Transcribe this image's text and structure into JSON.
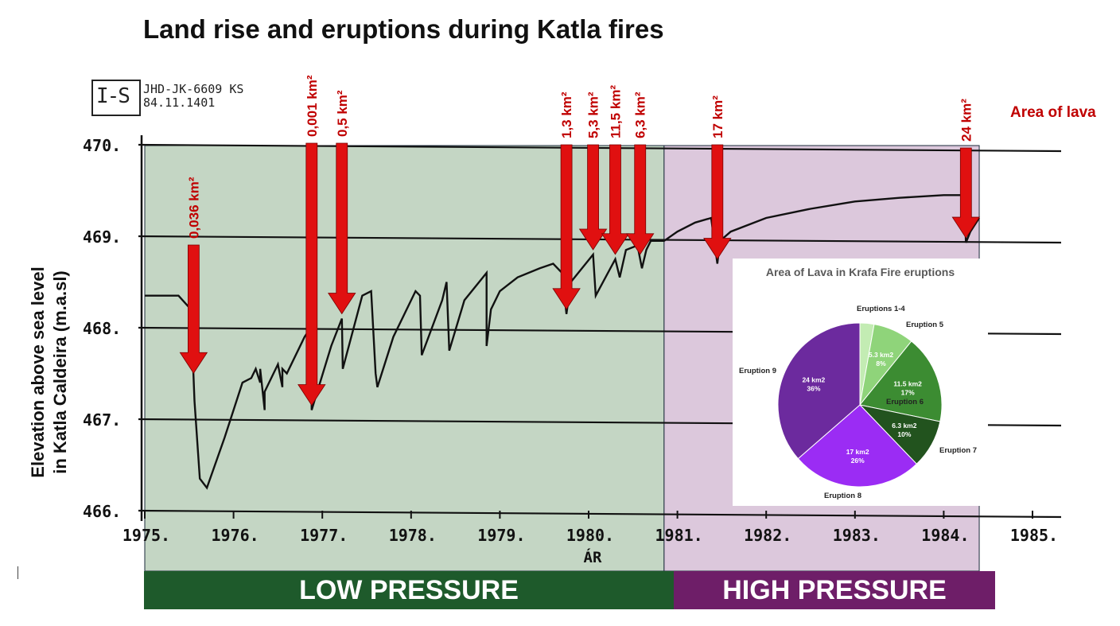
{
  "title": "Land rise and eruptions during Katla fires",
  "stamp": {
    "line1": "JHD-JK-6609 KS",
    "line2": "84.11.1401",
    "glyph": "I-S"
  },
  "y_axis_label": {
    "line1": "Elevation above sea level",
    "line2": "in Katla Caldeira (m.a.sl)"
  },
  "area_of_lava_label": "Area of lava",
  "x_axis_title": "ÁR",
  "bands": {
    "low": "LOW PRESSURE",
    "high": "HIGH PRESSURE"
  },
  "colors": {
    "low_bg": "#c4d6c4",
    "high_bg": "#dcc8dc",
    "arrow": "#e01010",
    "low_band": "#1e5a2b",
    "high_band": "#6e1e68",
    "annotation": "#c00000"
  },
  "chart_data": [
    {
      "type": "line",
      "title": "Land rise and eruptions during Katla fires",
      "xlabel": "ÁR",
      "ylabel": "Elevation above sea level in Katla Caldeira (m.a.sl)",
      "xlim": [
        1975,
        1985
      ],
      "ylim": [
        466,
        470
      ],
      "x_ticks": [
        "1975.",
        "1976.",
        "1977.",
        "1978.",
        "1979.",
        "1980.",
        "1981.",
        "1982.",
        "1983.",
        "1984.",
        "1985."
      ],
      "y_ticks": [
        "466.",
        "467.",
        "468.",
        "469.",
        "470."
      ],
      "grid": true,
      "regions": [
        {
          "label": "LOW PRESSURE",
          "x": [
            1975,
            1980.85
          ]
        },
        {
          "label": "HIGH PRESSURE",
          "x": [
            1980.85,
            1984.4
          ]
        }
      ],
      "series": [
        {
          "x": [
            1975,
            1975.38,
            1975.52,
            1975.56,
            1975.62,
            1975.7,
            1975.9,
            1976.1,
            1976.2,
            1976.25,
            1976.3,
            1976.3,
            1976.35,
            1976.35,
            1976.5,
            1976.55,
            1976.55,
            1976.6,
            1976.8,
            1976.87,
            1976.88,
            1977.1,
            1977.22,
            1977.23,
            1977.45,
            1977.55,
            1977.6,
            1977.62,
            1977.8,
            1978.05,
            1978.1,
            1978.12,
            1978.35,
            1978.4,
            1978.43,
            1978.6,
            1978.85,
            1978.85,
            1978.9,
            1979.0,
            1979.2,
            1979.45,
            1979.6,
            1979.7,
            1979.75,
            1979.8,
            1980.05,
            1980.08,
            1980.3,
            1980.35,
            1980.42,
            1980.55,
            1980.6,
            1980.65,
            1980.7,
            1980.85,
            1981.0,
            1981.2,
            1981.38,
            1981.45,
            1981.48,
            1981.6,
            1982.0,
            1982.5,
            1983.0,
            1983.5,
            1984.0,
            1984.23,
            1984.25,
            1984.3,
            1984.4
          ],
          "y": [
            468.35,
            468.35,
            468.2,
            467.2,
            466.35,
            466.25,
            466.8,
            467.4,
            467.45,
            467.55,
            467.4,
            467.55,
            467.1,
            467.3,
            467.6,
            467.35,
            467.55,
            467.5,
            467.9,
            468.0,
            467.1,
            467.8,
            468.1,
            467.55,
            468.35,
            468.4,
            467.5,
            467.35,
            467.9,
            468.4,
            468.35,
            467.7,
            468.3,
            468.5,
            467.75,
            468.3,
            468.6,
            467.8,
            468.2,
            468.4,
            468.55,
            468.65,
            468.7,
            468.6,
            468.15,
            468.5,
            468.8,
            468.35,
            468.75,
            468.55,
            468.85,
            468.9,
            468.65,
            468.85,
            468.95,
            468.95,
            469.05,
            469.15,
            469.2,
            468.7,
            468.95,
            469.05,
            469.2,
            469.3,
            469.38,
            469.42,
            469.45,
            469.45,
            468.93,
            469.05,
            469.2
          ]
        }
      ],
      "annotations": [
        {
          "label": "0,036 km²",
          "x": 1975.55
        },
        {
          "label": "0,001 km²",
          "x": 1976.88
        },
        {
          "label": "0,5 km²",
          "x": 1977.22
        },
        {
          "label": "1,3 km²",
          "x": 1979.75
        },
        {
          "label": "5,3 km²",
          "x": 1980.05
        },
        {
          "label": "11,5 km²",
          "x": 1980.3
        },
        {
          "label": "6,3 km²",
          "x": 1980.58
        },
        {
          "label": "17 km²",
          "x": 1981.45
        },
        {
          "label": "24 km²",
          "x": 1984.25
        }
      ]
    },
    {
      "type": "pie",
      "title": "Area of Lava in Krafa Fire eruptions",
      "slices": [
        {
          "name": "Eruptions 1-4",
          "value": 1.84,
          "text": "",
          "pct": "",
          "color": "#c3ecb3"
        },
        {
          "name": "Eruption 5",
          "value": 5.3,
          "text": "5.3 km2",
          "pct": "8%",
          "color": "#8fd47a"
        },
        {
          "name": "Eruption 6",
          "value": 11.5,
          "text": "11.5 km2",
          "pct": "17%",
          "color": "#3c8c32"
        },
        {
          "name": "Eruption 7",
          "value": 6.3,
          "text": "6.3 km2",
          "pct": "10%",
          "color": "#22531e"
        },
        {
          "name": "Eruption 8",
          "value": 17,
          "text": "17 km2",
          "pct": "26%",
          "color": "#9b2cf4"
        },
        {
          "name": "Eruption 9",
          "value": 24,
          "text": "24 km2",
          "pct": "36%",
          "color": "#6c2a9e"
        }
      ]
    }
  ]
}
